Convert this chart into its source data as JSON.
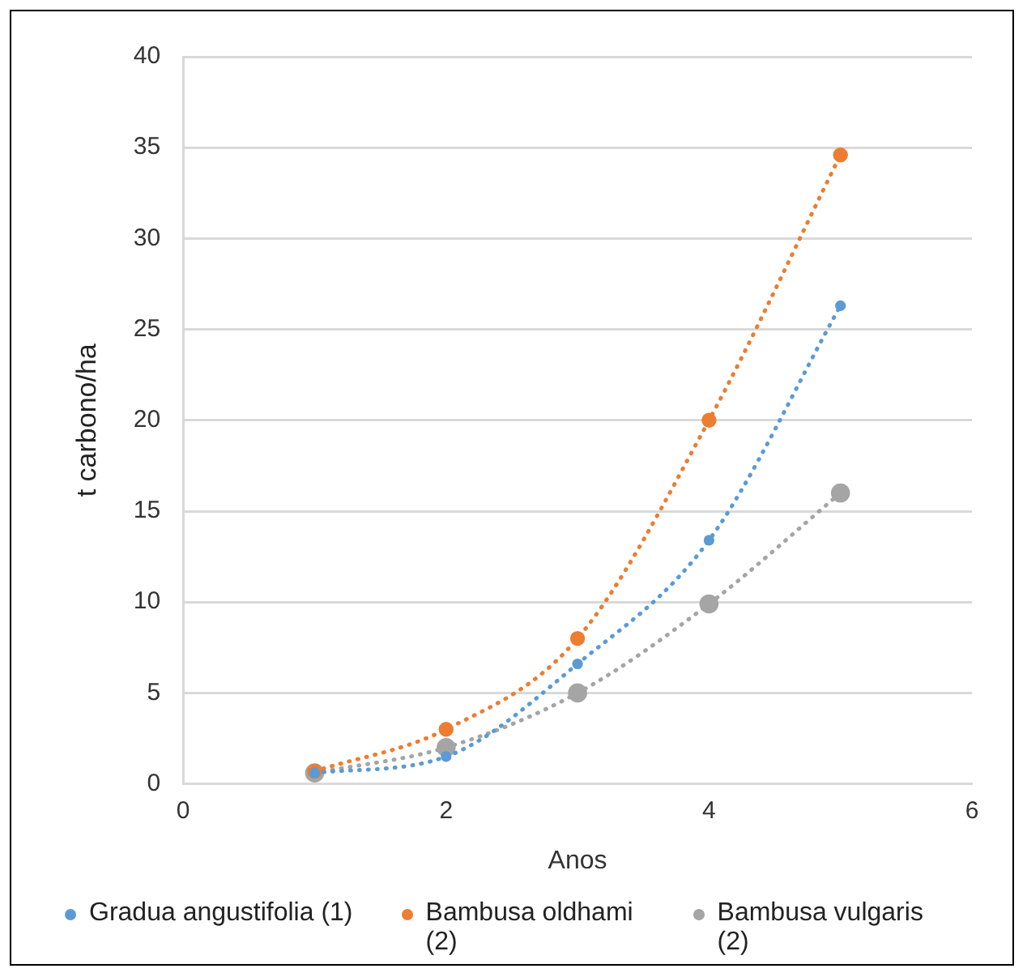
{
  "chart_data": {
    "type": "line",
    "xlabel": "Anos",
    "ylabel": "t carbono/ha",
    "x": [
      1,
      2,
      3,
      4,
      5
    ],
    "series": [
      {
        "name": "Gradua angustifolia (1)",
        "color": "#5b9bd5",
        "values": [
          0.6,
          1.5,
          6.6,
          13.4,
          26.3
        ]
      },
      {
        "name": "Bambusa oldhami (2)",
        "color": "#ed7d31",
        "values": [
          0.7,
          3.0,
          8.0,
          20.0,
          34.6
        ]
      },
      {
        "name": "Bambusa vulgaris  (2)",
        "color": "#a5a5a5",
        "values": [
          0.6,
          2.0,
          5.0,
          9.9,
          16.0
        ]
      }
    ],
    "xlim": [
      0,
      6
    ],
    "xticks": [
      0,
      2,
      4,
      6
    ],
    "ylim": [
      0,
      40
    ],
    "yticks": [
      0,
      5,
      10,
      15,
      20,
      25,
      30,
      35,
      40
    ],
    "grid": "y",
    "legend": "bottom",
    "marker": "circle",
    "line_style": "dotted"
  }
}
